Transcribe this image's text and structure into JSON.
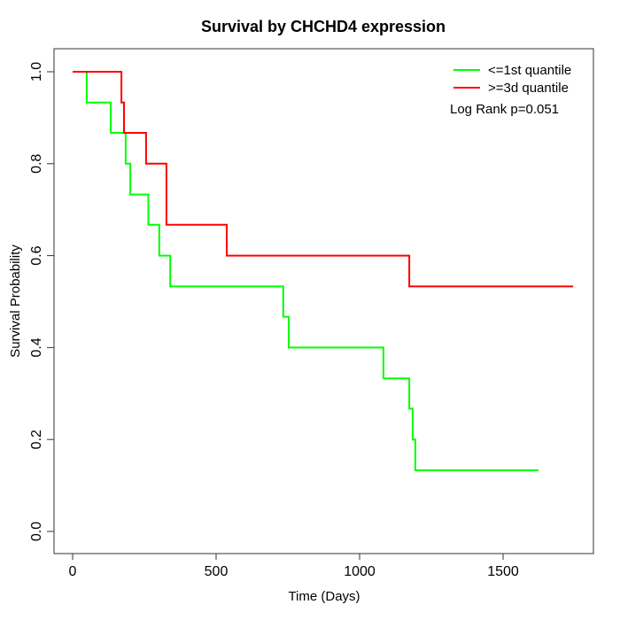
{
  "chart_data": {
    "type": "line",
    "subtype": "kaplan-meier-step",
    "title": "Survival by CHCHD4 expression",
    "xlabel": "Time (Days)",
    "ylabel": "Survival Probability",
    "xlim": [
      0,
      1815
    ],
    "ylim": [
      0,
      1
    ],
    "grid": false,
    "legend_position": "top-right",
    "annotation": "Log Rank p=0.051",
    "xticks": {
      "values": [
        0,
        500,
        1000,
        1500
      ],
      "labels": [
        "0",
        "500",
        "1000",
        "1500"
      ]
    },
    "yticks": {
      "values": [
        0,
        0.2,
        0.4,
        0.6,
        0.8,
        1.0
      ],
      "labels": [
        "0.0",
        "0.2",
        "0.4",
        "0.6",
        "0.8",
        "1.0"
      ]
    },
    "legend": [
      {
        "label": "<=1st quantile",
        "color": "#00ff00"
      },
      {
        "label": ">=3d quantile",
        "color": "#ff0000"
      }
    ],
    "series": [
      {
        "name": "<=1st quantile",
        "key": "le-1st-quantile",
        "color": "#00ff00",
        "step_points": [
          [
            0,
            1.0
          ],
          [
            49,
            0.933
          ],
          [
            133,
            0.867
          ],
          [
            185,
            0.8
          ],
          [
            201,
            0.733
          ],
          [
            264,
            0.667
          ],
          [
            302,
            0.6
          ],
          [
            340,
            0.533
          ],
          [
            734,
            0.467
          ],
          [
            753,
            0.4
          ],
          [
            1083,
            0.333
          ],
          [
            1173,
            0.267
          ],
          [
            1185,
            0.2
          ],
          [
            1194,
            0.133
          ]
        ],
        "end_time": 1623
      },
      {
        "name": ">=3d quantile",
        "key": "ge-3d-quantile",
        "color": "#ff0000",
        "step_points": [
          [
            0,
            1.0
          ],
          [
            170,
            0.933
          ],
          [
            179,
            0.867
          ],
          [
            256,
            0.8
          ],
          [
            327,
            0.667
          ],
          [
            537,
            0.6
          ],
          [
            1173,
            0.533
          ]
        ],
        "end_time": 1744
      }
    ]
  }
}
